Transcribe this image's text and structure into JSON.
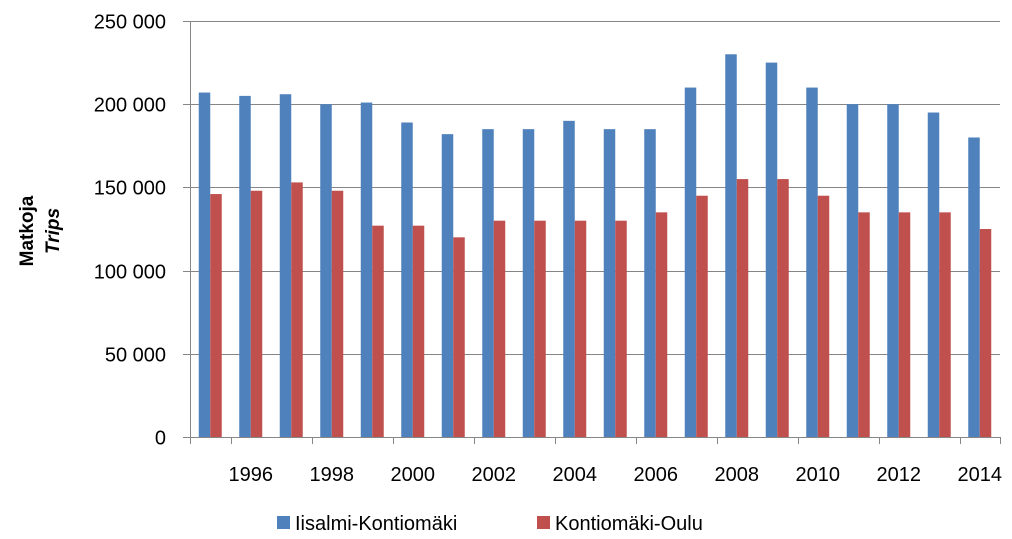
{
  "chart_data": {
    "type": "bar",
    "ylabel": "Matkoja",
    "ylabel_en": "Trips",
    "ylim": [
      0,
      250000
    ],
    "y_ticks": [
      0,
      50000,
      100000,
      150000,
      200000,
      250000
    ],
    "y_tick_labels": [
      "0",
      "50 000",
      "100 000",
      "150 000",
      "200 000",
      "250 000"
    ],
    "grid": true,
    "legend_position": "bottom",
    "categories": [
      1995,
      1996,
      1997,
      1998,
      1999,
      2000,
      2001,
      2002,
      2003,
      2004,
      2005,
      2006,
      2007,
      2008,
      2009,
      2010,
      2011,
      2012,
      2013,
      2014
    ],
    "x_tick_labels": [
      "1996",
      "1998",
      "2000",
      "2002",
      "2004",
      "2006",
      "2008",
      "2010",
      "2012",
      "2014"
    ],
    "series": [
      {
        "name": "Iisalmi-Kontiomäki",
        "color": "#4f81bd",
        "values": [
          207000,
          205000,
          206000,
          200000,
          201000,
          189000,
          182000,
          185000,
          185000,
          190000,
          185000,
          185000,
          210000,
          230000,
          225000,
          210000,
          200000,
          200000,
          195000,
          180000
        ]
      },
      {
        "name": "Kontiomäki-Oulu",
        "color": "#c0504d",
        "values": [
          146000,
          148000,
          153000,
          148000,
          127000,
          127000,
          120000,
          130000,
          130000,
          130000,
          130000,
          135000,
          145000,
          155000,
          155000,
          145000,
          135000,
          135000,
          135000,
          125000
        ]
      }
    ]
  }
}
